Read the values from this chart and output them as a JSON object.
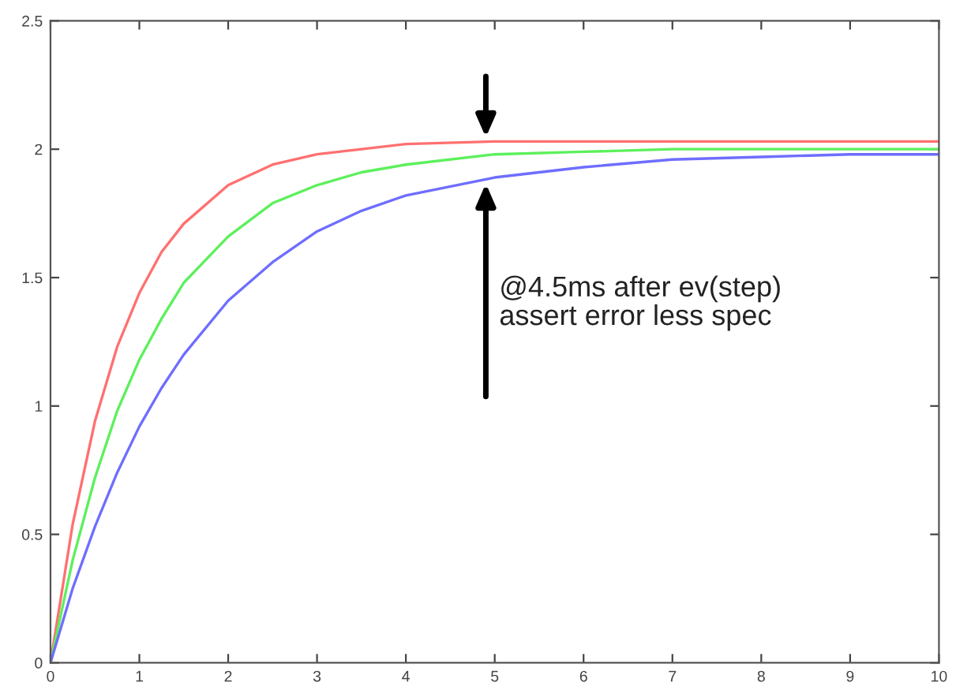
{
  "chart_data": {
    "type": "line",
    "x": [
      0,
      0.25,
      0.5,
      0.75,
      1,
      1.25,
      1.5,
      2,
      2.5,
      3,
      3.5,
      4,
      5,
      6,
      7,
      8,
      9,
      10
    ],
    "series": [
      {
        "color": "#ff7070",
        "values": [
          0,
          0.54,
          0.94,
          1.23,
          1.44,
          1.6,
          1.71,
          1.86,
          1.94,
          1.98,
          2.0,
          2.02,
          2.03,
          2.03,
          2.03,
          2.03,
          2.03,
          2.03
        ]
      },
      {
        "color": "#5cf05c",
        "values": [
          0,
          0.4,
          0.72,
          0.98,
          1.18,
          1.34,
          1.48,
          1.66,
          1.79,
          1.86,
          1.91,
          1.94,
          1.98,
          1.99,
          2.0,
          2.0,
          2.0,
          2.0
        ]
      },
      {
        "color": "#6e6eff",
        "values": [
          0,
          0.29,
          0.53,
          0.74,
          0.92,
          1.07,
          1.2,
          1.41,
          1.56,
          1.68,
          1.76,
          1.82,
          1.89,
          1.93,
          1.96,
          1.97,
          1.98,
          1.98
        ]
      }
    ],
    "xlim": [
      0,
      10
    ],
    "ylim": [
      0,
      2.5
    ],
    "xticks": [
      0,
      1,
      2,
      3,
      4,
      5,
      6,
      7,
      8,
      9,
      10
    ],
    "yticks": [
      0,
      0.5,
      1,
      1.5,
      2,
      2.5
    ],
    "annotations": [
      "@4.5ms after ev(step)\nassert error less spec"
    ],
    "grid": false,
    "marker": "none",
    "line_style": "solid"
  }
}
